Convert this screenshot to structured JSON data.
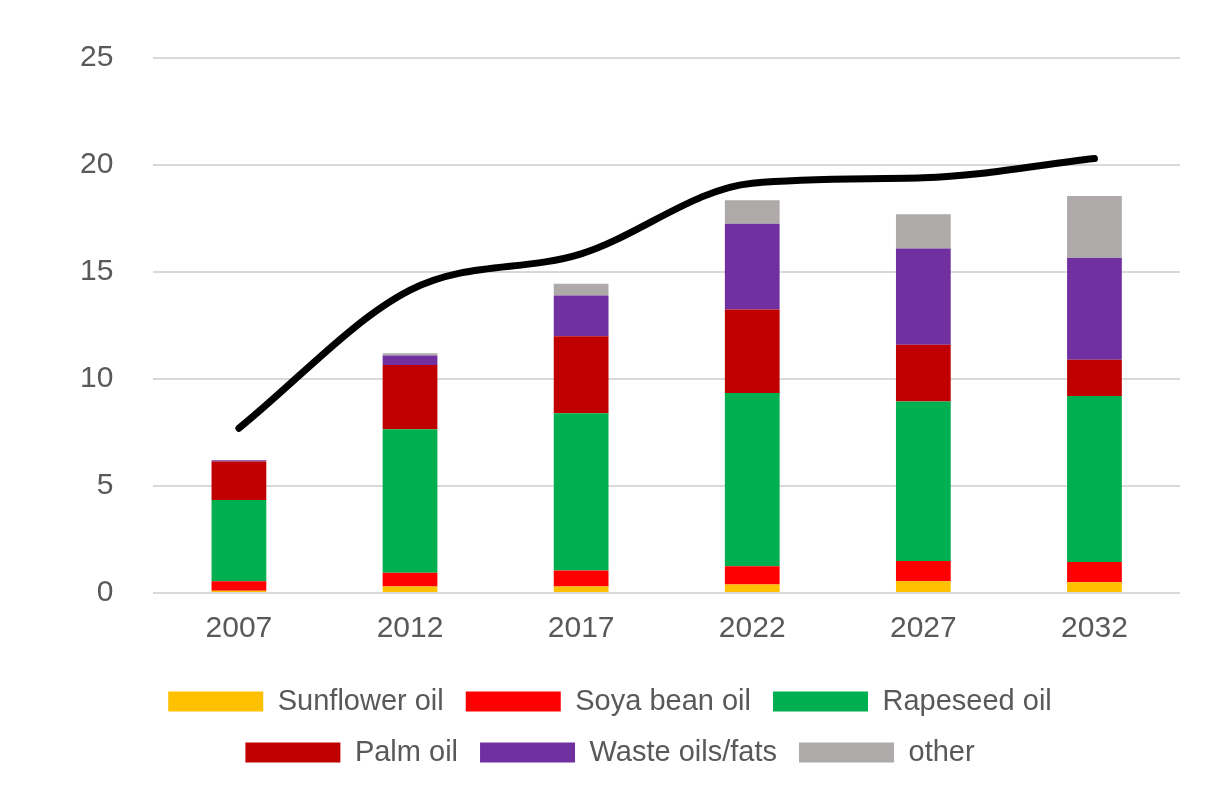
{
  "chart_data": {
    "type": "bar",
    "stacked": true,
    "grid": true,
    "legend": "bottom",
    "categories": [
      "2007",
      "2012",
      "2017",
      "2022",
      "2027",
      "2032"
    ],
    "ylim": [
      0,
      25
    ],
    "yticks": [
      0,
      5,
      10,
      15,
      20,
      25
    ],
    "series": [
      {
        "name": "Sunflower oil",
        "color": "#ffc000",
        "values": [
          0.1,
          0.3,
          0.3,
          0.4,
          0.55,
          0.5
        ]
      },
      {
        "name": "Soya bean oil",
        "color": "#ff0000",
        "values": [
          0.45,
          0.65,
          0.75,
          0.85,
          0.95,
          0.95
        ]
      },
      {
        "name": "Rapeseed oil",
        "color": "#00b050",
        "values": [
          3.8,
          6.7,
          7.35,
          8.1,
          7.45,
          7.75
        ]
      },
      {
        "name": "Palm oil",
        "color": "#c00000",
        "values": [
          1.8,
          3.0,
          3.6,
          3.9,
          2.65,
          1.7
        ]
      },
      {
        "name": "Waste oils/fats",
        "color": "#7030a0",
        "values": [
          0.05,
          0.45,
          1.9,
          4.0,
          4.5,
          4.75
        ]
      },
      {
        "name": "other",
        "color": "#aeaaaa",
        "values": [
          0,
          0.1,
          0.55,
          1.1,
          1.6,
          2.9
        ]
      },
      {
        "type": "line",
        "color": "#000000",
        "marker": "none",
        "values": [
          7.7,
          14.15,
          15.85,
          19.15,
          19.4,
          20.3
        ]
      }
    ]
  }
}
